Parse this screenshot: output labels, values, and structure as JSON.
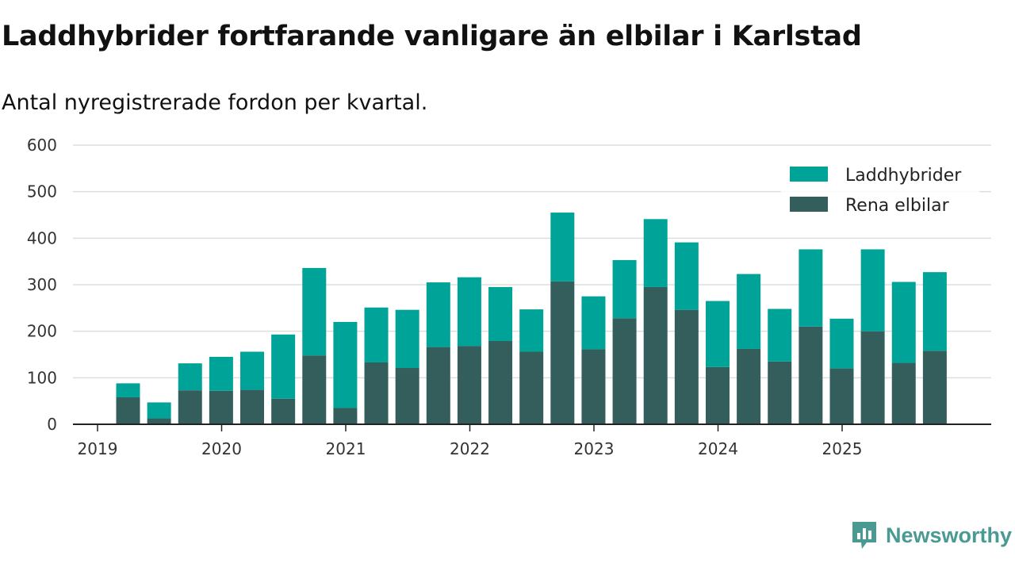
{
  "chart_data": {
    "type": "bar",
    "stacked": true,
    "title": "Laddhybrider fortfarande vanligare än elbilar i Karlstad",
    "subtitle": "Antal nyregistrerade fordon per kvartal.",
    "xlabel": "",
    "ylabel": "",
    "ylim": [
      0,
      600
    ],
    "yticks": [
      0,
      100,
      200,
      300,
      400,
      500,
      600
    ],
    "year_labels": [
      "2019",
      "2020",
      "2021",
      "2022",
      "2023",
      "2024",
      "2025"
    ],
    "categories": [
      "2019Q2",
      "2019Q3",
      "2019Q4",
      "2020Q1",
      "2020Q2",
      "2020Q3",
      "2020Q4",
      "2021Q1",
      "2021Q2",
      "2021Q3",
      "2021Q4",
      "2022Q1",
      "2022Q2",
      "2022Q3",
      "2022Q4",
      "2023Q1",
      "2023Q2",
      "2023Q3",
      "2023Q4",
      "2024Q1",
      "2024Q2",
      "2024Q3",
      "2024Q4",
      "2025Q1",
      "2025Q2",
      "2025Q3",
      "2025Q4"
    ],
    "series": [
      {
        "name": "Rena elbilar",
        "color": "#335e5b",
        "values": [
          58,
          13,
          73,
          72,
          74,
          55,
          148,
          35,
          133,
          121,
          166,
          168,
          179,
          156,
          307,
          161,
          228,
          295,
          246,
          123,
          162,
          135,
          210,
          120,
          200,
          132,
          158
        ]
      },
      {
        "name": "Laddhybrider",
        "color": "#00a398",
        "values": [
          30,
          34,
          58,
          73,
          82,
          138,
          188,
          185,
          118,
          125,
          139,
          148,
          116,
          91,
          148,
          114,
          125,
          146,
          145,
          142,
          161,
          113,
          166,
          107,
          176,
          174,
          169
        ]
      }
    ],
    "legend": {
      "position": "top-right",
      "order": [
        "Laddhybrider",
        "Rena elbilar"
      ]
    },
    "grid": true
  },
  "brand": {
    "name": "Newsworthy"
  }
}
